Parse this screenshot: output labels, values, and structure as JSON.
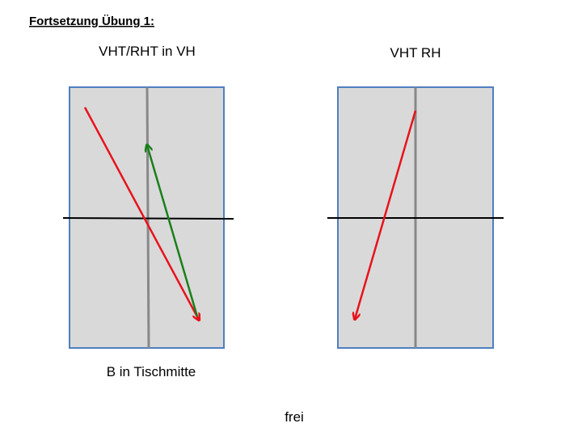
{
  "header": {
    "title": "Fortsetzung Übung 1:"
  },
  "diagrams": [
    {
      "label": "VHT/RHT in VH",
      "caption": "B in Tischmitte"
    },
    {
      "label": "VHT RH"
    }
  ],
  "footer": "frei"
}
